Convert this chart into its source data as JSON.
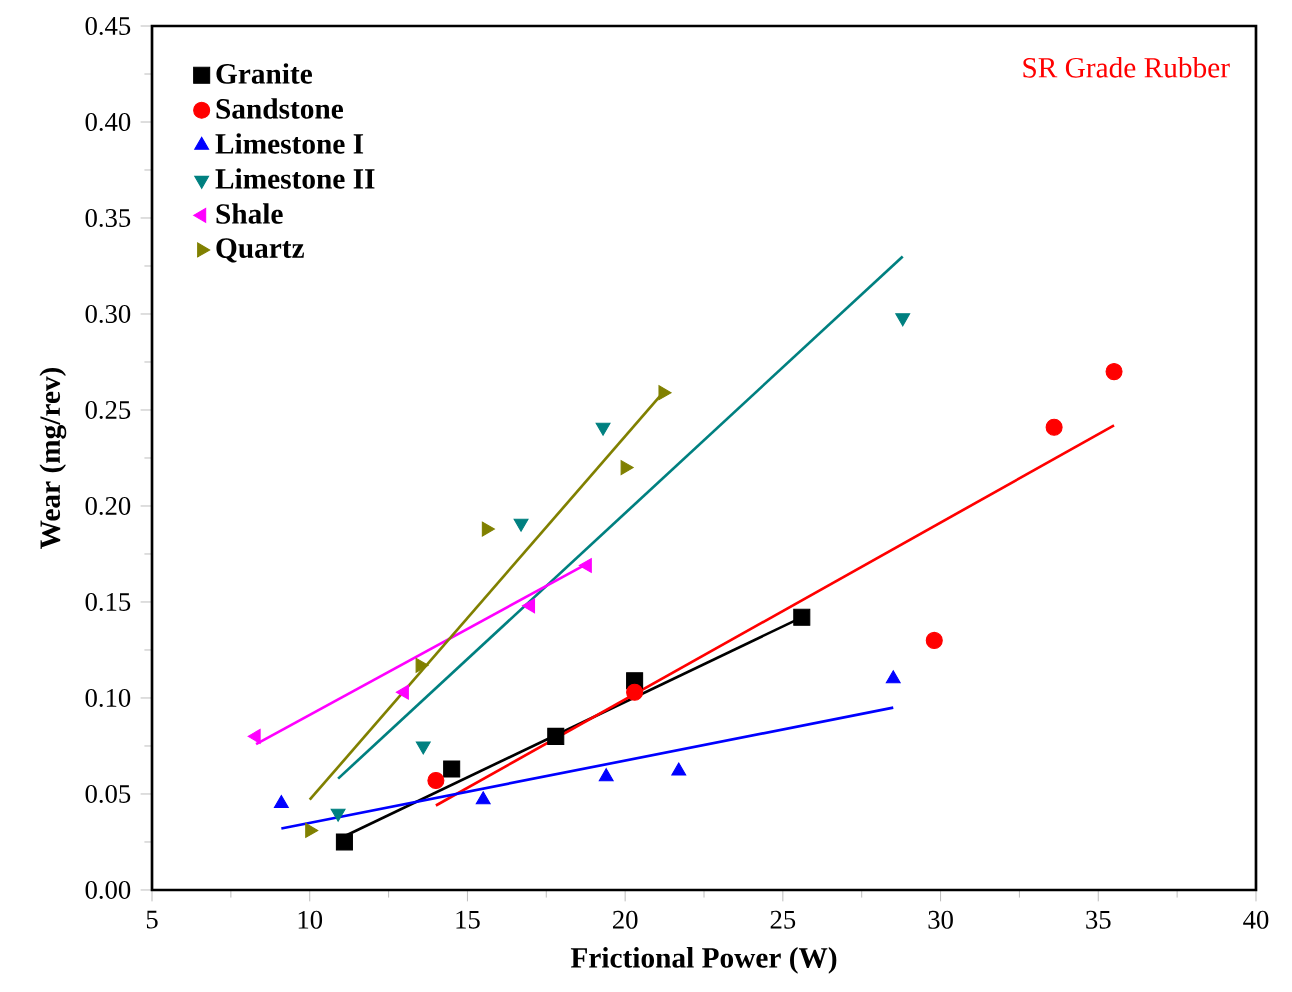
{
  "chart_data": {
    "type": "scatter",
    "xlabel": "Frictional Power (W)",
    "ylabel": "Wear (mg/rev)",
    "annotations": [
      "SR Grade Rubber"
    ],
    "xlim": [
      5,
      40
    ],
    "xticks": [
      5,
      10,
      15,
      20,
      25,
      30,
      35,
      40
    ],
    "ylim": [
      0,
      0.45
    ],
    "yticks": [
      {
        "value": 0,
        "label": "0.00"
      },
      {
        "value": 0.05,
        "label": "0.05"
      },
      {
        "value": 0.1,
        "label": "0.10"
      },
      {
        "value": 0.15,
        "label": "0.15"
      },
      {
        "value": 0.2,
        "label": "0.20"
      },
      {
        "value": 0.25,
        "label": "0.25"
      },
      {
        "value": 0.3,
        "label": "0.30"
      },
      {
        "value": 0.35,
        "label": "0.35"
      },
      {
        "value": 0.4,
        "label": "0.40"
      },
      {
        "value": 0.45,
        "label": "0.45"
      }
    ],
    "grid": false,
    "legend": "top left",
    "series": [
      {
        "name": "Granite",
        "color": "#000000",
        "marker": "square",
        "x": [
          11.1,
          14.5,
          17.8,
          20.3,
          25.6
        ],
        "values": [
          0.025,
          0.063,
          0.08,
          0.109,
          0.142
        ]
      },
      {
        "name": "Sandstone",
        "color": "#ff0000",
        "marker": "circle",
        "x": [
          14.0,
          20.3,
          29.8,
          33.6,
          35.5
        ],
        "values": [
          0.057,
          0.103,
          0.13,
          0.241,
          0.27
        ]
      },
      {
        "name": "Limestone I",
        "color": "#0000ff",
        "marker": "triangle",
        "x": [
          9.1,
          15.5,
          19.4,
          21.7,
          28.5
        ],
        "values": [
          0.045,
          0.047,
          0.059,
          0.062,
          0.11
        ]
      },
      {
        "name": "Limestone II",
        "color": "#008080",
        "marker": "triangle-down",
        "x": [
          10.9,
          13.6,
          16.7,
          19.3,
          28.8
        ],
        "values": [
          0.04,
          0.075,
          0.191,
          0.241,
          0.298
        ]
      },
      {
        "name": "Shale",
        "color": "#ff00ff",
        "marker": "triangle-left",
        "x": [
          8.3,
          13.0,
          17.0,
          18.8
        ],
        "values": [
          0.08,
          0.103,
          0.148,
          0.169
        ]
      },
      {
        "name": "Quartz",
        "color": "#808000",
        "marker": "triangle-right",
        "x": [
          10.0,
          13.5,
          15.6,
          20.0,
          21.2
        ],
        "values": [
          0.031,
          0.117,
          0.188,
          0.22,
          0.259
        ]
      },
      {
        "type": "line",
        "color": "#000000",
        "marker": "none",
        "x": [
          11.1,
          25.6
        ],
        "values": [
          0.028,
          0.142
        ]
      },
      {
        "type": "line",
        "color": "#ff0000",
        "marker": "none",
        "x": [
          14.0,
          35.5
        ],
        "values": [
          0.044,
          0.242
        ]
      },
      {
        "type": "line",
        "color": "#0000ff",
        "marker": "none",
        "x": [
          9.1,
          28.5
        ],
        "values": [
          0.032,
          0.095
        ]
      },
      {
        "type": "line",
        "color": "#008080",
        "marker": "none",
        "x": [
          10.9,
          28.8
        ],
        "values": [
          0.058,
          0.33
        ]
      },
      {
        "type": "line",
        "color": "#ff00ff",
        "marker": "none",
        "x": [
          8.3,
          18.8
        ],
        "values": [
          0.076,
          0.17
        ]
      },
      {
        "type": "line",
        "color": "#808000",
        "marker": "none",
        "x": [
          10.0,
          21.2
        ],
        "values": [
          0.047,
          0.259
        ]
      }
    ]
  }
}
